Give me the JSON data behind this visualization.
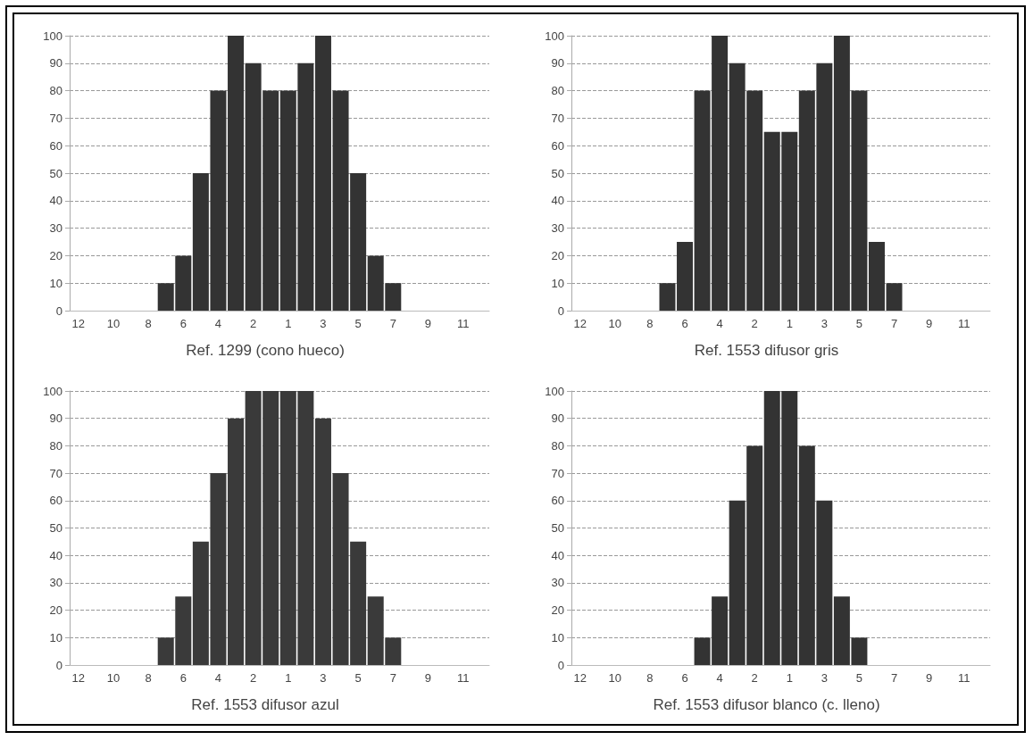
{
  "chart_data": [
    {
      "type": "bar",
      "title": "Ref. 1299 (cono hueco)",
      "categories": [
        "12",
        null,
        "10",
        null,
        "8",
        null,
        "6",
        null,
        "4",
        null,
        "2",
        null,
        "1",
        null,
        "3",
        null,
        "5",
        null,
        "7",
        null,
        "9",
        null,
        "11",
        null
      ],
      "values": [
        0,
        0,
        0,
        0,
        0,
        10,
        20,
        50,
        80,
        100,
        90,
        80,
        80,
        90,
        100,
        80,
        50,
        20,
        10,
        0,
        0,
        0,
        0,
        0
      ],
      "color": "#333333",
      "ylim": [
        0,
        100
      ],
      "yticks": [
        0,
        10,
        20,
        30,
        40,
        50,
        60,
        70,
        80,
        90,
        100
      ],
      "grid": "y"
    },
    {
      "type": "bar",
      "title": "Ref. 1553 difusor gris",
      "categories": [
        "12",
        null,
        "10",
        null,
        "8",
        null,
        "6",
        null,
        "4",
        null,
        "2",
        null,
        "1",
        null,
        "3",
        null,
        "5",
        null,
        "7",
        null,
        "9",
        null,
        "11",
        null
      ],
      "values": [
        0,
        0,
        0,
        0,
        0,
        10,
        25,
        80,
        100,
        90,
        80,
        65,
        65,
        80,
        90,
        100,
        80,
        25,
        10,
        0,
        0,
        0,
        0,
        0
      ],
      "color": "#333333",
      "ylim": [
        0,
        100
      ],
      "yticks": [
        0,
        10,
        20,
        30,
        40,
        50,
        60,
        70,
        80,
        90,
        100
      ],
      "grid": "y"
    },
    {
      "type": "bar",
      "title": "Ref. 1553 difusor azul",
      "categories": [
        "12",
        null,
        "10",
        null,
        "8",
        null,
        "6",
        null,
        "4",
        null,
        "2",
        null,
        "1",
        null,
        "3",
        null,
        "5",
        null,
        "7",
        null,
        "9",
        null,
        "11",
        null
      ],
      "values": [
        0,
        0,
        0,
        0,
        0,
        10,
        25,
        45,
        70,
        90,
        100,
        100,
        100,
        100,
        90,
        70,
        45,
        25,
        10,
        0,
        0,
        0,
        0,
        0
      ],
      "color": "#3a3a3a",
      "ylim": [
        0,
        100
      ],
      "yticks": [
        0,
        10,
        20,
        30,
        40,
        50,
        60,
        70,
        80,
        90,
        100
      ],
      "grid": "y"
    },
    {
      "type": "bar",
      "title": "Ref. 1553 difusor blanco (c. lleno)",
      "categories": [
        "12",
        null,
        "10",
        null,
        "8",
        null,
        "6",
        null,
        "4",
        null,
        "2",
        null,
        "1",
        null,
        "3",
        null,
        "5",
        null,
        "7",
        null,
        "9",
        null,
        "11",
        null
      ],
      "values": [
        0,
        0,
        0,
        0,
        0,
        0,
        0,
        10,
        25,
        60,
        80,
        100,
        100,
        80,
        60,
        25,
        10,
        0,
        0,
        0,
        0,
        0,
        0,
        0
      ],
      "color": "#333333",
      "ylim": [
        0,
        100
      ],
      "yticks": [
        0,
        10,
        20,
        30,
        40,
        50,
        60,
        70,
        80,
        90,
        100
      ],
      "grid": "y"
    }
  ]
}
